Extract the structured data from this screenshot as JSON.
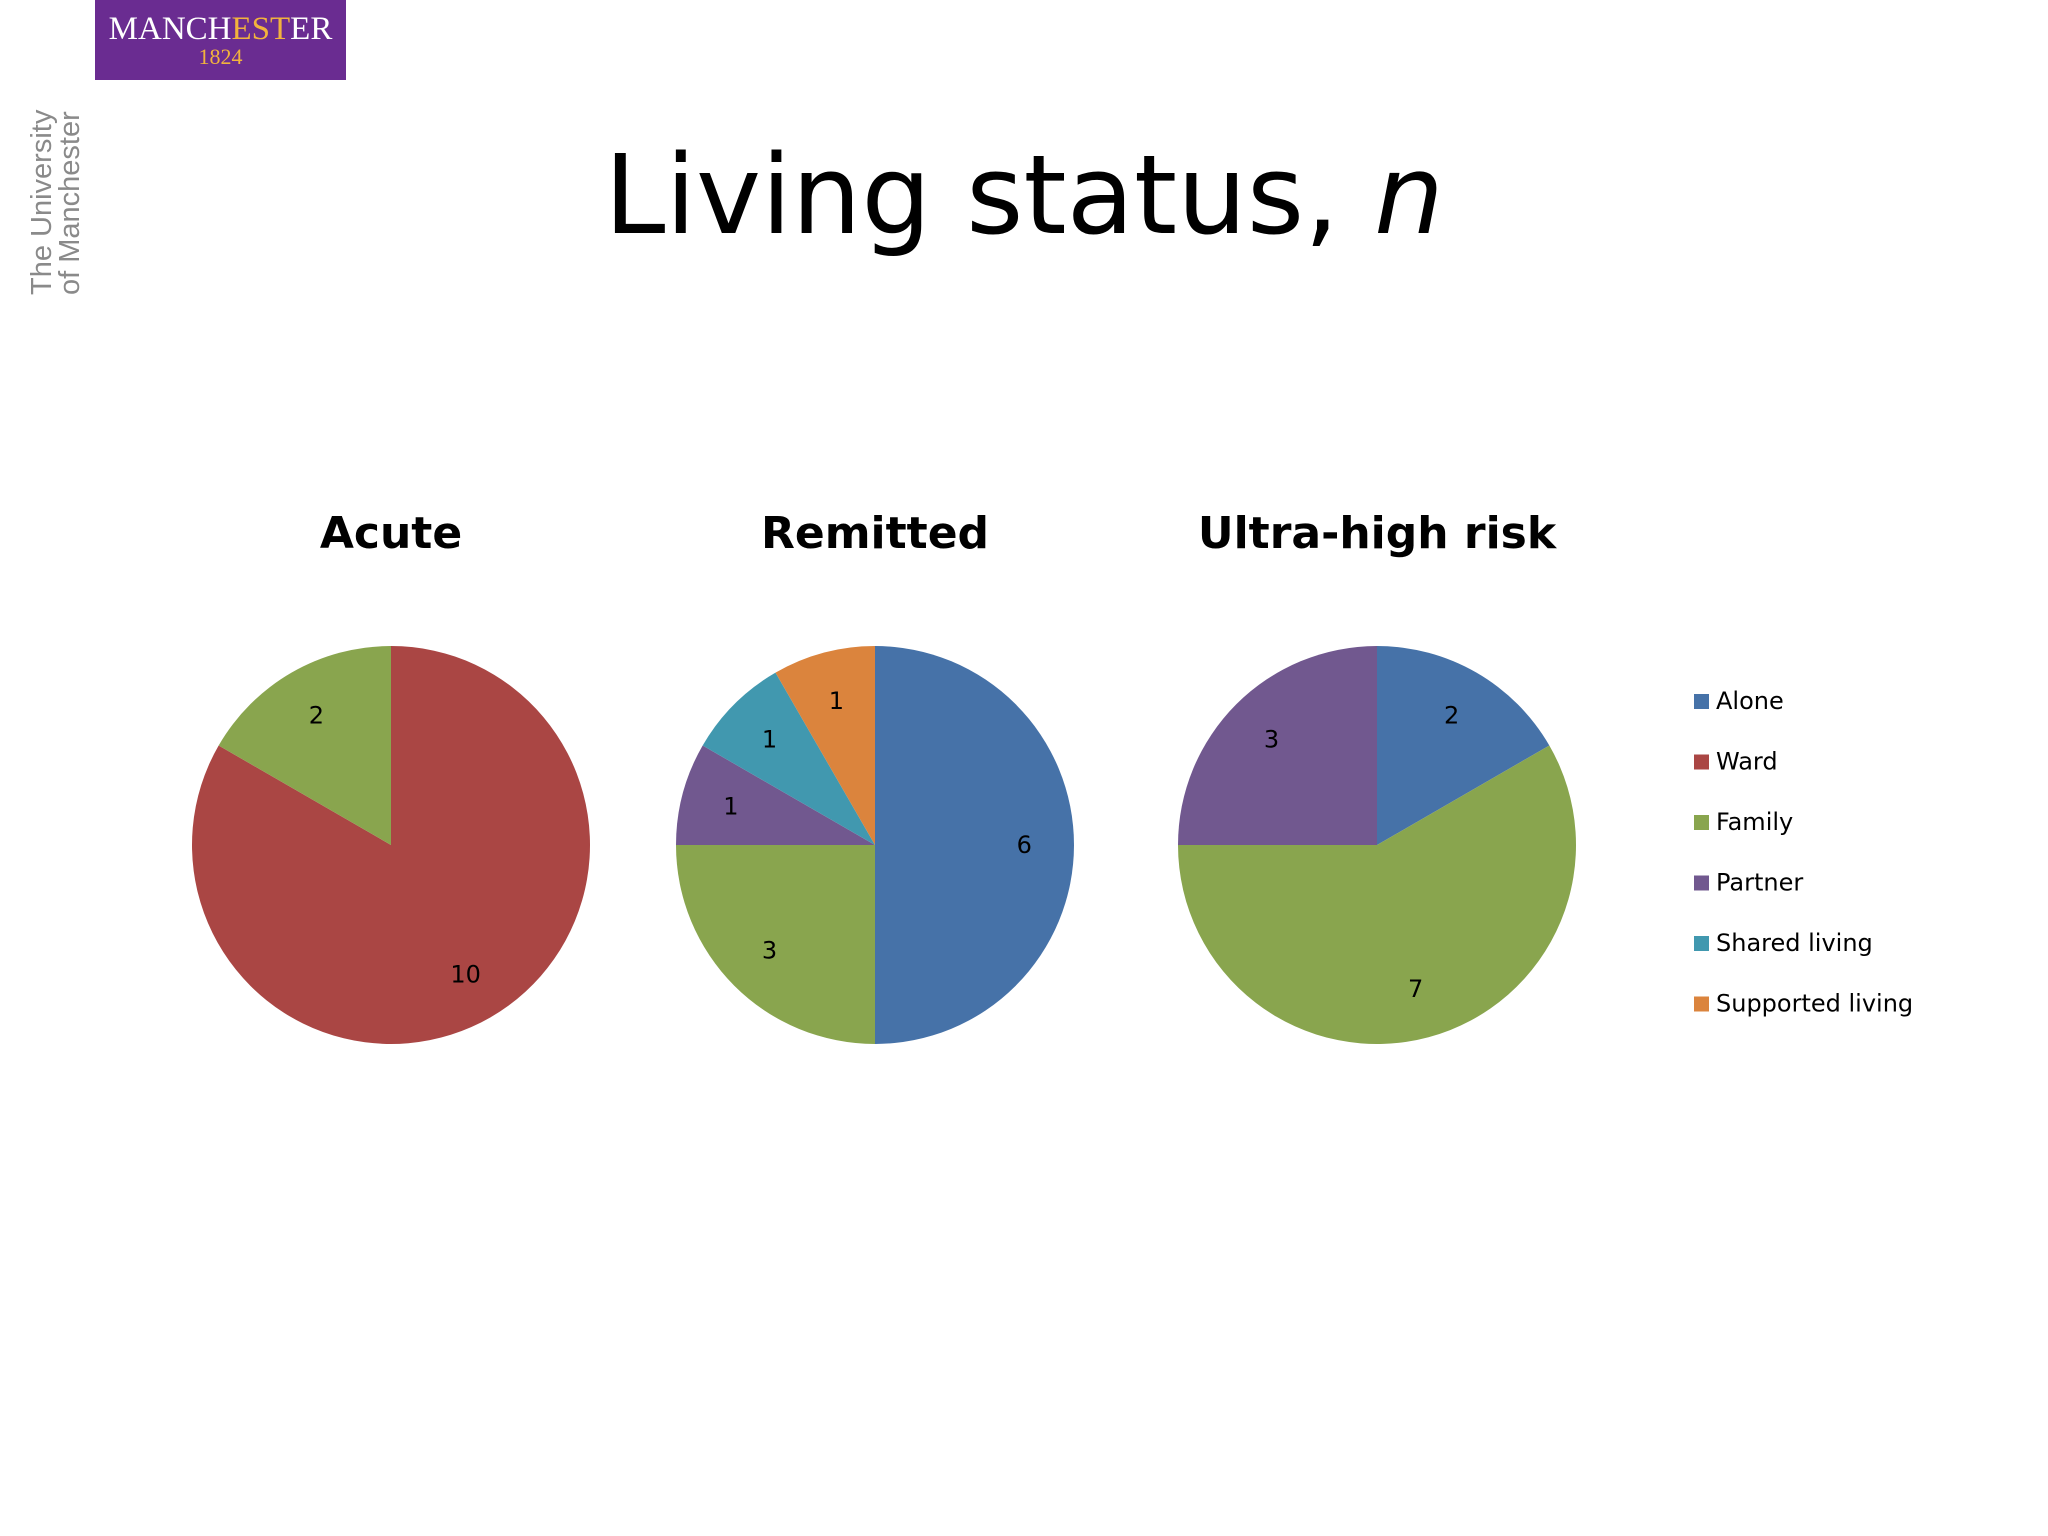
{
  "logo": {
    "name_prefix": "MANCH",
    "name_highlight": "EST",
    "name_suffix": "ER",
    "year": "1824"
  },
  "university_side_text": {
    "line1": "The University",
    "line2": "of Manchester"
  },
  "slide_title": {
    "text": "Living status, ",
    "variable": "n"
  },
  "colors": {
    "Alone": "#4672a8",
    "Ward": "#aa4644",
    "Family": "#89a54e",
    "Partner": "#71588f",
    "Shared living": "#4198af",
    "Supported living": "#db843d"
  },
  "chart_data": [
    {
      "type": "pie",
      "title": "Acute",
      "slices": [
        {
          "label": "Ward",
          "value": 10
        },
        {
          "label": "Family",
          "value": 2
        }
      ]
    },
    {
      "type": "pie",
      "title": "Remitted",
      "slices": [
        {
          "label": "Alone",
          "value": 6
        },
        {
          "label": "Family",
          "value": 3
        },
        {
          "label": "Partner",
          "value": 1
        },
        {
          "label": "Shared living",
          "value": 1
        },
        {
          "label": "Supported living",
          "value": 1
        }
      ]
    },
    {
      "type": "pie",
      "title": "Ultra-high risk",
      "slices": [
        {
          "label": "Alone",
          "value": 2
        },
        {
          "label": "Family",
          "value": 7
        },
        {
          "label": "Partner",
          "value": 3
        }
      ]
    }
  ],
  "legend": {
    "placement": "right",
    "entries": [
      "Alone",
      "Ward",
      "Family",
      "Partner",
      "Shared living",
      "Supported living"
    ]
  }
}
